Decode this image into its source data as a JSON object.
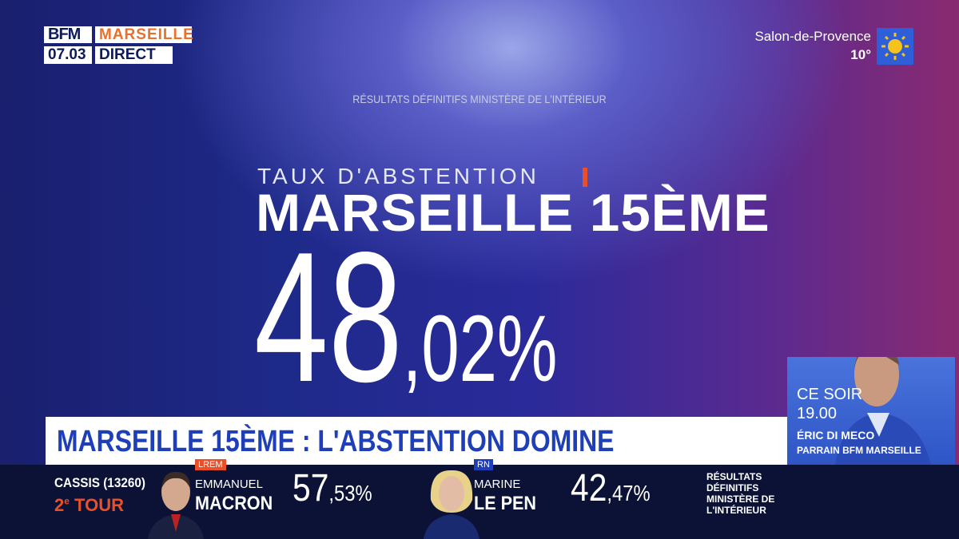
{
  "header": {
    "brand": "BFM",
    "channel": "MARSEILLE",
    "time": "07.03",
    "live": "DIRECT"
  },
  "weather": {
    "city": "Salon-de-Provence",
    "temperature": "10°"
  },
  "source": "RÉSULTATS DÉFINITIFS MINISTÈRE DE L'INTÉRIEUR",
  "main": {
    "kicker": "TAUX D'ABSTENTION",
    "title": "MARSEILLE 15ÈME",
    "value_integer": "48",
    "value_decimal": ",02%"
  },
  "banner": "MARSEILLE 15ÈME : L'ABSTENTION DOMINE",
  "inset": {
    "when": "CE SOIR",
    "time": "19.00",
    "name": "ÉRIC DI MECO",
    "role": "PARRAIN BFM MARSEILLE"
  },
  "ticker": {
    "place": "CASSIS (13260)",
    "round_number": "2",
    "round_suffix": "e",
    "round_label": " TOUR",
    "candidates": [
      {
        "party": "LREM",
        "first_name": "EMMANUEL",
        "last_name": "MACRON",
        "score_integer": "57",
        "score_decimal": ",53%"
      },
      {
        "party": "RN",
        "first_name": "MARINE",
        "last_name": "LE PEN",
        "score_integer": "42",
        "score_decimal": ",47%"
      }
    ],
    "source_lines": [
      "RÉSULTATS",
      "DÉFINITIFS",
      "MINISTÈRE DE",
      "L'INTÉRIEUR"
    ]
  }
}
